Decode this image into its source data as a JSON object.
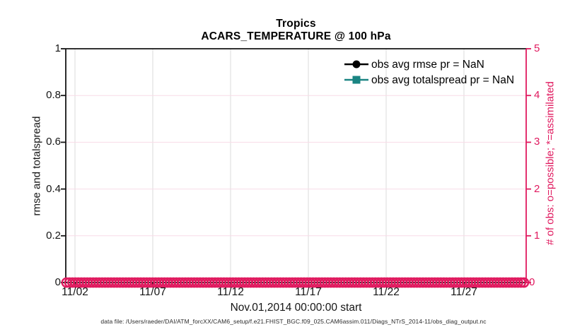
{
  "figure": {
    "title_line1": "Tropics",
    "title_line2": "ACARS_TEMPERATURE @ 100 hPa",
    "xlabel": "Nov.01,2014 00:00:00 start",
    "footer": "data file: /Users/raeder/DAI/ATM_forcXX/CAM6_setup/f.e21.FHIST_BGC.f09_025.CAM6assim.011/Diags_NTrS_2014-11/obs_diag_output.nc"
  },
  "left_axis": {
    "label": "rmse and totalspread",
    "ticks": [
      "1",
      "0.8",
      "0.6",
      "0.4",
      "0.2",
      "0"
    ]
  },
  "right_axis": {
    "label": "# of obs: o=possible; *=assimilated",
    "ticks": [
      "5",
      "4",
      "3",
      "2",
      "1",
      "0"
    ]
  },
  "x_axis": {
    "ticks": [
      "11/02",
      "11/07",
      "11/12",
      "11/17",
      "11/22",
      "11/27"
    ]
  },
  "legend": {
    "item1": {
      "label": "obs avg rmse pr = NaN",
      "marker": "filled-circle",
      "color": "#000000"
    },
    "item2": {
      "label": "obs avg totalspread pr = NaN",
      "marker": "filled-square",
      "color": "#1A8482"
    }
  },
  "colors": {
    "obs_pink": "#E01A5F",
    "pink_grid": "#F8DCE7",
    "teal": "#1A8482",
    "gray_grid": "#DBDBDB",
    "axis_black": "#151515"
  },
  "chart_data": {
    "type": "line",
    "title": "Tropics",
    "subtitle": "ACARS_TEMPERATURE @ 100 hPa",
    "xlabel": "Nov.01,2014 00:00:00 start",
    "x_ticks": [
      "11/02",
      "11/07",
      "11/12",
      "11/17",
      "11/22",
      "11/27"
    ],
    "x_range": "Nov 01 2014 to Dec 01 2014",
    "ylabel_left": "rmse and totalspread",
    "ylim_left": [
      0,
      1
    ],
    "yticks_left": [
      0,
      0.2,
      0.4,
      0.6,
      0.8,
      1
    ],
    "ylabel_right": "# of obs: o=possible; *=assimilated",
    "ylim_right": [
      0,
      5
    ],
    "yticks_right": [
      0,
      1,
      2,
      3,
      4,
      5
    ],
    "grid": true,
    "legend_position": "upper-right-inside-no-box",
    "series": [
      {
        "name": "obs avg rmse pr = NaN",
        "axis": "left",
        "style": "black line, filled circle marker",
        "values": "NaN (nothing plotted)"
      },
      {
        "name": "obs avg totalspread pr = NaN",
        "axis": "left",
        "style": "teal line, filled square marker",
        "values": "NaN (nothing plotted)"
      },
      {
        "name": "# of obs possible (o markers)",
        "axis": "right",
        "style": "pink open circles",
        "values": "0 at every time step across Nov 2014 (dense overlapping band along y=0)"
      },
      {
        "name": "# of obs assimilated (* markers)",
        "axis": "right",
        "style": "pink asterisks",
        "values": "0 at every time step across Nov 2014 (dense overlapping band along y=0)"
      }
    ]
  }
}
